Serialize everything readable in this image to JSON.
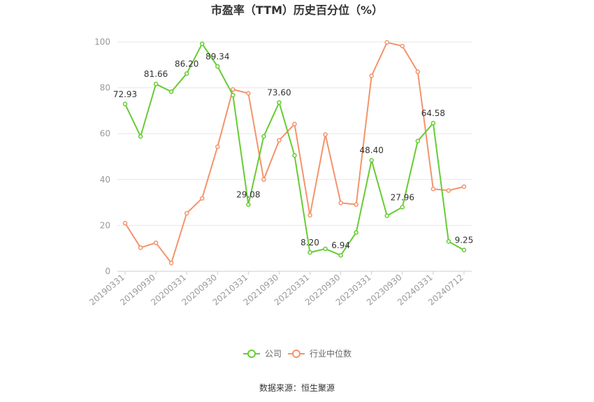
{
  "chart_data": {
    "type": "line",
    "title": "市盈率（TTM）历史百分位（%）",
    "source": "数据来源：恒生聚源",
    "ylim": [
      0,
      100
    ],
    "yticks": [
      0,
      20,
      40,
      60,
      80,
      100
    ],
    "grid": true,
    "legend_position": "bottom",
    "x": [
      "20190331",
      "20190630",
      "20190930",
      "20191231",
      "20200331",
      "20200630",
      "20200930",
      "20201231",
      "20210331",
      "20210630",
      "20210930",
      "20211231",
      "20220331",
      "20220630",
      "20220930",
      "20221231",
      "20230331",
      "20230630",
      "20230930",
      "20231231",
      "20240331",
      "20240630",
      "20240712"
    ],
    "x_tick_labels": [
      "20190331",
      "20190930",
      "20200331",
      "20200930",
      "20210331",
      "20210930",
      "20220331",
      "20220930",
      "20230331",
      "20230930",
      "20240331",
      "20240712"
    ],
    "series": [
      {
        "name": "公司",
        "color": "#66cc33",
        "values": [
          72.93,
          58.8,
          81.66,
          78.3,
          86.2,
          99.2,
          89.34,
          76.8,
          29.08,
          58.8,
          73.6,
          50.5,
          8.2,
          9.8,
          6.94,
          16.9,
          48.4,
          24.2,
          27.96,
          56.8,
          64.58,
          13.0,
          9.25
        ],
        "labels": {
          "0": "72.93",
          "2": "81.66",
          "4": "86.20",
          "6": "89.34",
          "8": "29.08",
          "10": "73.60",
          "12": "8.20",
          "14": "6.94",
          "16": "48.40",
          "18": "27.96",
          "20": "64.58",
          "22": "9.25"
        }
      },
      {
        "name": "行业中位数",
        "color": "#f4936b",
        "values": [
          21.0,
          10.3,
          12.4,
          3.6,
          25.3,
          31.8,
          54.3,
          79.3,
          77.6,
          40.0,
          57.1,
          64.2,
          24.4,
          59.6,
          29.8,
          29.1,
          85.2,
          99.8,
          98.2,
          87.0,
          35.9,
          35.2,
          36.9
        ]
      }
    ]
  }
}
